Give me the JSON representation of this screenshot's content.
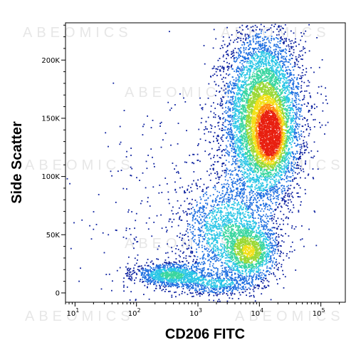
{
  "chart_data": {
    "type": "scatter",
    "subtype": "flow-cytometry-density-dot-plot",
    "title": "",
    "xlabel": "CD206 FITC",
    "ylabel": "Side Scatter",
    "x_scale": "log",
    "xlim": [
      7,
      250000
    ],
    "ylim": [
      -8000,
      232000
    ],
    "x_ticks": [
      {
        "value": 10,
        "base": "10",
        "exp": "1"
      },
      {
        "value": 100,
        "base": "10",
        "exp": "2"
      },
      {
        "value": 1000,
        "base": "10",
        "exp": "3"
      },
      {
        "value": 10000,
        "base": "10",
        "exp": "4"
      },
      {
        "value": 100000,
        "base": "10",
        "exp": "5"
      }
    ],
    "y_ticks": [
      {
        "value": 0,
        "label": "0"
      },
      {
        "value": 50000,
        "label": "50K"
      },
      {
        "value": 100000,
        "label": "100K"
      },
      {
        "value": 150000,
        "label": "150K"
      },
      {
        "value": 200000,
        "label": "200K"
      }
    ],
    "color_scale": [
      "#0a1f9e",
      "#1e6fe0",
      "#2cc6e6",
      "#3ad6a0",
      "#9ad836",
      "#f2e01a",
      "#ff8a10",
      "#e82010"
    ],
    "populations": [
      {
        "x_log_center": 4.05,
        "y_center": 150000,
        "x_log_sd": 0.32,
        "y_sd": 38000,
        "count": 6500,
        "density": 1.0
      },
      {
        "x_log_center": 4.18,
        "y_center": 135000,
        "x_log_sd": 0.14,
        "y_sd": 15000,
        "count": 900,
        "density": 1.35
      },
      {
        "x_log_center": 3.85,
        "y_center": 35000,
        "x_log_sd": 0.22,
        "y_sd": 12000,
        "count": 1300,
        "density": 0.8
      },
      {
        "x_log_center": 3.45,
        "y_center": 55000,
        "x_log_sd": 0.35,
        "y_sd": 22000,
        "count": 1400,
        "density": 0.45
      },
      {
        "x_log_center": 2.55,
        "y_center": 16000,
        "x_log_sd": 0.3,
        "y_sd": 5000,
        "count": 1100,
        "density": 0.55
      },
      {
        "x_log_center": 3.3,
        "y_center": 8000,
        "x_log_sd": 0.35,
        "y_sd": 5000,
        "count": 500,
        "density": 0.3
      },
      {
        "x_log_center": 2.6,
        "y_center": 60000,
        "x_log_sd": 0.8,
        "y_sd": 60000,
        "count": 350,
        "density": 0.05
      }
    ],
    "grid": false,
    "legend": "none"
  },
  "watermark": "ABEOMICS"
}
